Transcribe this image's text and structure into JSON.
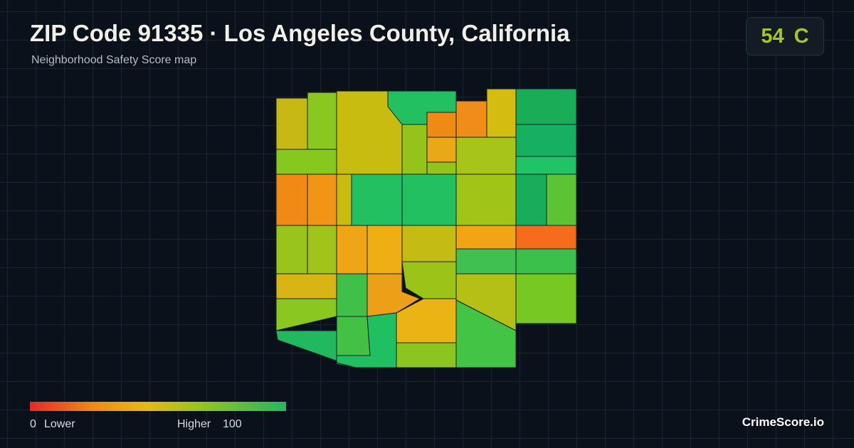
{
  "header": {
    "title": "ZIP Code 91335 · Los Angeles County, California",
    "subtitle": "Neighborhood Safety Score map"
  },
  "score": {
    "value": 54,
    "grade": "C"
  },
  "legend": {
    "min": 0,
    "min_label": "Lower",
    "max_label": "Higher",
    "max": 100
  },
  "brand": "CrimeScore.io"
}
